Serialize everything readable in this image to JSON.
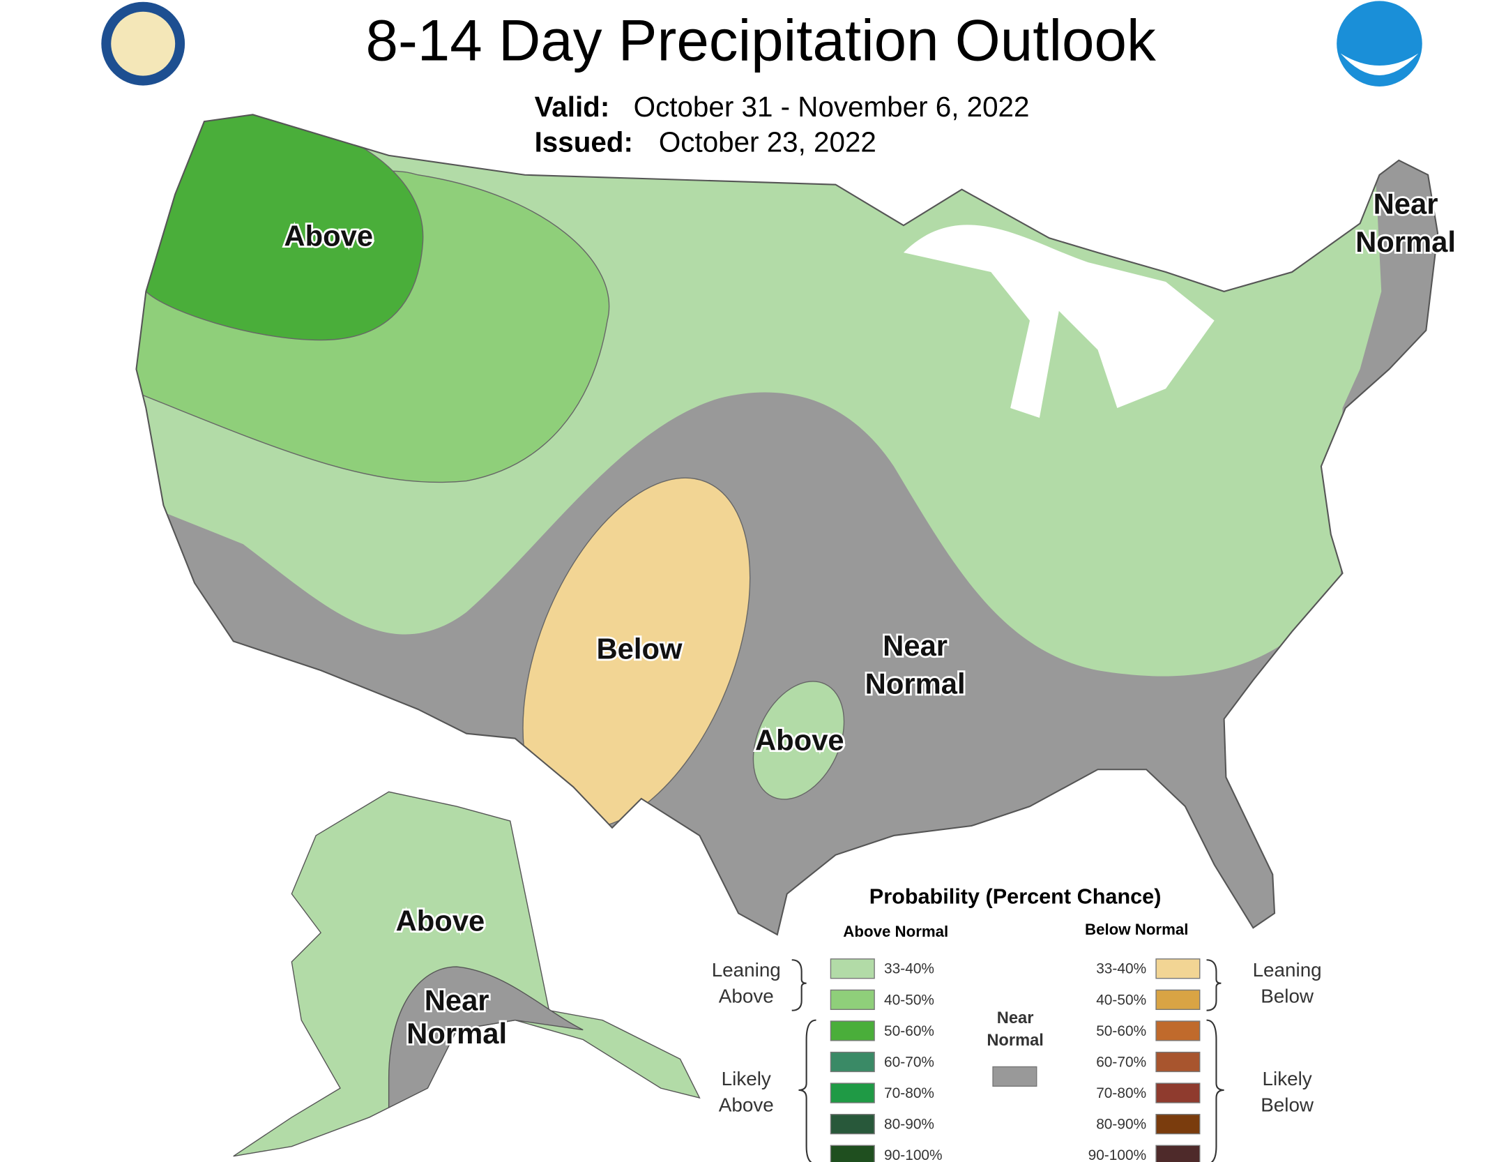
{
  "header": {
    "title": "8-14 Day Precipitation Outlook",
    "valid_label": "Valid:",
    "valid": "October 31 - November 6, 2022",
    "issued_label": "Issued:",
    "issued": "October 23, 2022"
  },
  "map_labels": [
    {
      "lines": [
        "Above"
      ]
    },
    {
      "lines": [
        "Near",
        "Normal"
      ]
    },
    {
      "lines": [
        "Below"
      ]
    },
    {
      "lines": [
        "Near",
        "Normal"
      ]
    },
    {
      "lines": [
        "Above"
      ]
    },
    {
      "lines": [
        "Above"
      ]
    },
    {
      "lines": [
        "Near",
        "Normal"
      ]
    }
  ],
  "legend": {
    "title": "Probability (Percent Chance)",
    "above_header": "Above Normal",
    "below_header": "Below Normal",
    "leaning_above": [
      "Leaning",
      "Above"
    ],
    "likely_above": [
      "Likely",
      "Above"
    ],
    "leaning_below": [
      "Leaning",
      "Below"
    ],
    "likely_below": [
      "Likely",
      "Below"
    ],
    "near_normal": {
      "lines": [
        "Near",
        "Normal"
      ],
      "color": "#999999"
    },
    "above": [
      {
        "label": "33-40%",
        "color": "#b2dba7"
      },
      {
        "label": "40-50%",
        "color": "#8fcf7a"
      },
      {
        "label": "50-60%",
        "color": "#4aae3a"
      },
      {
        "label": "60-70%",
        "color": "#3a8a66"
      },
      {
        "label": "70-80%",
        "color": "#1f9a45"
      },
      {
        "label": "80-90%",
        "color": "#28583a"
      },
      {
        "label": "90-100%",
        "color": "#1f4f1f"
      }
    ],
    "below": [
      {
        "label": "33-40%",
        "color": "#f2d594"
      },
      {
        "label": "40-50%",
        "color": "#d9a444"
      },
      {
        "label": "50-60%",
        "color": "#c06a2c"
      },
      {
        "label": "60-70%",
        "color": "#a8552e"
      },
      {
        "label": "70-80%",
        "color": "#8f3b2e"
      },
      {
        "label": "80-90%",
        "color": "#7a3c0d"
      },
      {
        "label": "90-100%",
        "color": "#4e2a2a"
      }
    ]
  }
}
